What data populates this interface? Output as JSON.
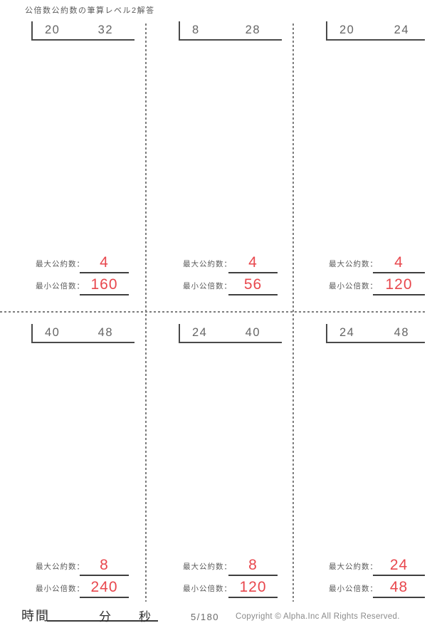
{
  "title": "公倍数公約数の筆算レベル2解答",
  "labels": {
    "gcd": "最大公約数：",
    "lcm": "最小公倍数："
  },
  "problems": [
    {
      "a": "20",
      "b": "32",
      "gcd": "4",
      "lcm": "160"
    },
    {
      "a": "8",
      "b": "28",
      "gcd": "4",
      "lcm": "56"
    },
    {
      "a": "20",
      "b": "24",
      "gcd": "4",
      "lcm": "120"
    },
    {
      "a": "40",
      "b": "48",
      "gcd": "8",
      "lcm": "240"
    },
    {
      "a": "24",
      "b": "40",
      "gcd": "8",
      "lcm": "120"
    },
    {
      "a": "24",
      "b": "48",
      "gcd": "24",
      "lcm": "48"
    }
  ],
  "footer": {
    "time_label": "時間",
    "minutes_label": "分",
    "seconds_label": "秒",
    "page": "5/180",
    "copyright": "Copyright ©  Alpha.Inc All Rights Reserved."
  },
  "colors": {
    "answer_red": "#e8474d",
    "ink_gray": "#5a5a5a",
    "line_dark": "#4a4a4a",
    "dash_gray": "#7d7d7d"
  }
}
